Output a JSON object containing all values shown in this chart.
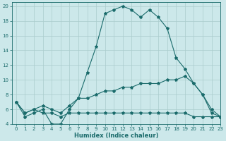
{
  "title": "",
  "xlabel": "Humidex (Indice chaleur)",
  "bg_color": "#cce8ea",
  "line_color": "#1a6b6b",
  "grid_color": "#aacccc",
  "xlim": [
    -0.5,
    23
  ],
  "ylim": [
    4,
    20.5
  ],
  "xticks": [
    0,
    1,
    2,
    3,
    4,
    5,
    6,
    7,
    8,
    9,
    10,
    11,
    12,
    13,
    14,
    15,
    16,
    17,
    18,
    19,
    20,
    21,
    22,
    23
  ],
  "yticks": [
    4,
    6,
    8,
    10,
    12,
    14,
    16,
    18,
    20
  ],
  "line1_x": [
    0,
    1,
    2,
    3,
    4,
    5,
    6,
    7,
    8,
    9,
    10,
    11,
    12,
    13,
    14,
    15,
    16,
    17,
    18,
    19,
    20,
    21,
    22,
    23
  ],
  "line1_y": [
    7.0,
    5.0,
    5.5,
    6.0,
    4.0,
    4.0,
    6.0,
    7.5,
    11.0,
    14.5,
    19.0,
    19.5,
    20.0,
    19.5,
    18.5,
    19.5,
    18.5,
    17.0,
    13.0,
    11.5,
    9.5,
    8.0,
    6.0,
    5.0
  ],
  "line2_x": [
    0,
    1,
    2,
    3,
    4,
    5,
    6,
    7,
    8,
    9,
    10,
    11,
    12,
    13,
    14,
    15,
    16,
    17,
    18,
    19,
    20,
    21,
    22,
    23
  ],
  "line2_y": [
    7.0,
    5.5,
    6.0,
    6.5,
    6.0,
    5.5,
    6.5,
    7.5,
    7.5,
    8.0,
    8.5,
    8.5,
    9.0,
    9.0,
    9.5,
    9.5,
    9.5,
    10.0,
    10.0,
    10.5,
    9.5,
    8.0,
    5.5,
    5.0
  ],
  "line3_x": [
    0,
    1,
    2,
    3,
    4,
    5,
    6,
    7,
    8,
    9,
    10,
    11,
    12,
    13,
    14,
    15,
    16,
    17,
    18,
    19,
    20,
    21,
    22,
    23
  ],
  "line3_y": [
    7.0,
    5.5,
    6.0,
    5.5,
    5.5,
    5.0,
    5.5,
    5.5,
    5.5,
    5.5,
    5.5,
    5.5,
    5.5,
    5.5,
    5.5,
    5.5,
    5.5,
    5.5,
    5.5,
    5.5,
    5.0,
    5.0,
    5.0,
    5.0
  ],
  "tick_fontsize": 5.0,
  "xlabel_fontsize": 6.0,
  "marker": "*",
  "markersize": 3.0,
  "linewidth": 0.8
}
